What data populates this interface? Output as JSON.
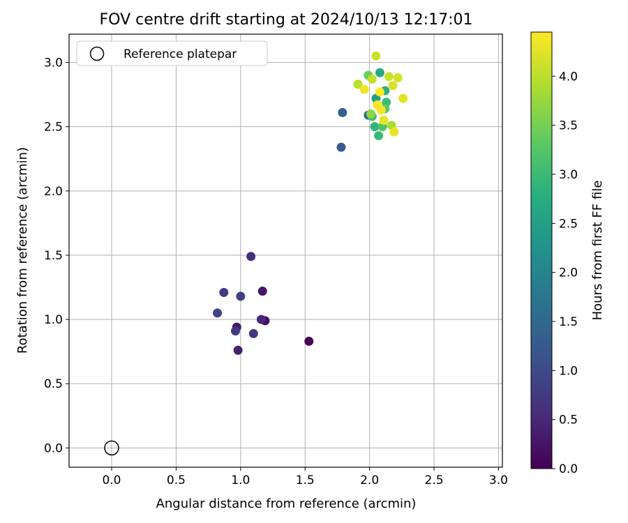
{
  "chart_data": {
    "type": "scatter",
    "title": "FOV centre drift starting at 2024/10/13 12:17:01",
    "xlabel": "Angular distance from reference (arcmin)",
    "ylabel": "Rotation from reference (arcmin)",
    "xlim": [
      -0.33,
      3.03
    ],
    "ylim": [
      -0.15,
      3.22
    ],
    "xticks": [
      "0.0",
      "0.5",
      "1.0",
      "1.5",
      "2.0",
      "2.5",
      "3.0"
    ],
    "xtick_values": [
      0,
      0.5,
      1.0,
      1.5,
      2.0,
      2.5,
      3.0
    ],
    "yticks": [
      "0.0",
      "0.5",
      "1.0",
      "1.5",
      "2.0",
      "2.5",
      "3.0"
    ],
    "ytick_values": [
      0,
      0.5,
      1.0,
      1.5,
      2.0,
      2.5,
      3.0
    ],
    "grid": true,
    "legend": {
      "placement": "top-left",
      "label": "Reference platepar",
      "marker": "open-circle"
    },
    "reference_point": {
      "x": 0.0,
      "y": 0.0
    },
    "colorbar": {
      "label": "Hours from first FF file",
      "colormap": "viridis",
      "range": [
        0.0,
        4.45
      ],
      "ticks": [
        "0.0",
        "0.5",
        "1.0",
        "1.5",
        "2.0",
        "2.5",
        "3.0",
        "3.5",
        "4.0"
      ],
      "tick_values": [
        0.0,
        0.5,
        1.0,
        1.5,
        2.0,
        2.5,
        3.0,
        3.5,
        4.0
      ]
    },
    "points": [
      {
        "x": 1.53,
        "y": 0.83,
        "c": 0.05
      },
      {
        "x": 1.19,
        "y": 0.99,
        "c": 0.15
      },
      {
        "x": 1.17,
        "y": 1.22,
        "c": 0.25
      },
      {
        "x": 0.97,
        "y": 0.94,
        "c": 0.3
      },
      {
        "x": 0.98,
        "y": 0.76,
        "c": 0.4
      },
      {
        "x": 1.16,
        "y": 1.0,
        "c": 0.5
      },
      {
        "x": 1.08,
        "y": 1.49,
        "c": 0.6
      },
      {
        "x": 1.1,
        "y": 0.89,
        "c": 0.7
      },
      {
        "x": 0.96,
        "y": 0.91,
        "c": 0.75
      },
      {
        "x": 0.87,
        "y": 1.21,
        "c": 0.8
      },
      {
        "x": 1.0,
        "y": 1.18,
        "c": 0.85
      },
      {
        "x": 0.82,
        "y": 1.05,
        "c": 0.9
      },
      {
        "x": 1.78,
        "y": 2.34,
        "c": 1.3
      },
      {
        "x": 1.79,
        "y": 2.61,
        "c": 1.35
      },
      {
        "x": 1.99,
        "y": 2.59,
        "c": 1.6
      },
      {
        "x": 2.05,
        "y": 2.72,
        "c": 2.5
      },
      {
        "x": 2.08,
        "y": 2.92,
        "c": 2.7
      },
      {
        "x": 2.12,
        "y": 2.78,
        "c": 2.8
      },
      {
        "x": 2.04,
        "y": 2.5,
        "c": 2.9
      },
      {
        "x": 2.07,
        "y": 2.43,
        "c": 3.0
      },
      {
        "x": 2.13,
        "y": 2.69,
        "c": 3.05
      },
      {
        "x": 2.02,
        "y": 2.58,
        "c": 3.1
      },
      {
        "x": 2.1,
        "y": 2.5,
        "c": 3.2
      },
      {
        "x": 2.12,
        "y": 2.64,
        "c": 3.3
      },
      {
        "x": 1.99,
        "y": 2.9,
        "c": 3.45
      },
      {
        "x": 2.01,
        "y": 2.6,
        "c": 3.7
      },
      {
        "x": 2.17,
        "y": 2.51,
        "c": 3.9
      },
      {
        "x": 1.91,
        "y": 2.83,
        "c": 4.0
      },
      {
        "x": 2.02,
        "y": 2.87,
        "c": 4.05
      },
      {
        "x": 2.05,
        "y": 3.05,
        "c": 4.1
      },
      {
        "x": 2.15,
        "y": 2.89,
        "c": 4.1
      },
      {
        "x": 2.22,
        "y": 2.88,
        "c": 4.15
      },
      {
        "x": 2.18,
        "y": 2.82,
        "c": 4.2
      },
      {
        "x": 2.26,
        "y": 2.72,
        "c": 4.25
      },
      {
        "x": 2.19,
        "y": 2.46,
        "c": 4.3
      },
      {
        "x": 2.11,
        "y": 2.55,
        "c": 4.3
      },
      {
        "x": 1.96,
        "y": 2.79,
        "c": 4.35
      },
      {
        "x": 2.09,
        "y": 2.63,
        "c": 4.4
      },
      {
        "x": 2.06,
        "y": 2.67,
        "c": 4.4
      },
      {
        "x": 2.08,
        "y": 2.77,
        "c": 4.45
      }
    ]
  }
}
